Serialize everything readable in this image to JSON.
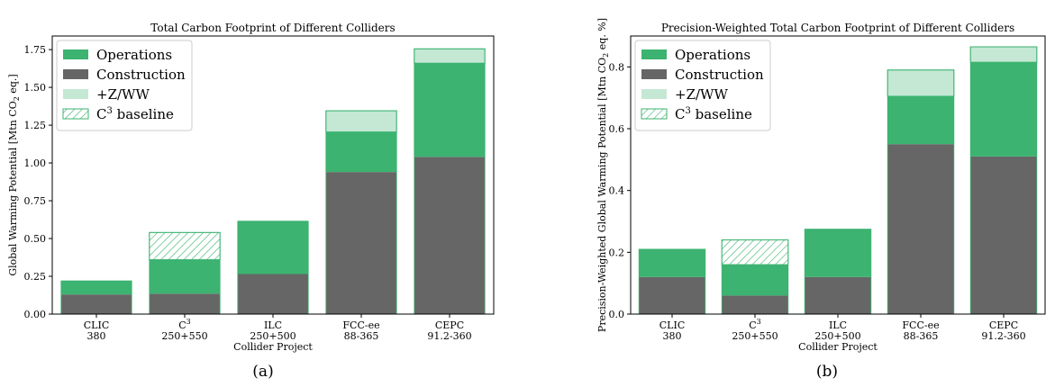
{
  "colors": {
    "operations": "#3cb371",
    "construction": "#666666",
    "zww": "#c4e8d4",
    "baseline_hatch": "#3cb371"
  },
  "legend": {
    "operations": "Operations",
    "construction": "Construction",
    "zww": "+Z/WW",
    "baseline_prefix": "C",
    "baseline_sup": "3",
    "baseline_suffix": " baseline"
  },
  "categories": [
    {
      "line1": "CLIC",
      "line2": "380",
      "sup": ""
    },
    {
      "line1": "C",
      "line2": "250+550",
      "sup": "3"
    },
    {
      "line1": "ILC",
      "line2": "250+500",
      "sup": ""
    },
    {
      "line1": "FCC-ee",
      "line2": "88-365",
      "sup": ""
    },
    {
      "line1": "CEPC",
      "line2": "91.2-360",
      "sup": ""
    }
  ],
  "chart_data": [
    {
      "type": "bar",
      "stacked": true,
      "title": "Total Carbon Footprint of Different Colliders",
      "xlabel": "Collider Project",
      "ylabel_main": "Global Warming Potential [Mtn CO",
      "ylabel_sub": "2",
      "ylabel_tail": " eq.]",
      "ylim": [
        0,
        1.84
      ],
      "yticks": [
        "0.00",
        "0.25",
        "0.50",
        "0.75",
        "1.00",
        "1.25",
        "1.50",
        "1.75"
      ],
      "ytick_values": [
        0,
        0.25,
        0.5,
        0.75,
        1.0,
        1.25,
        1.5,
        1.75
      ],
      "legend_position": "upper-left",
      "series": [
        {
          "name": "Construction",
          "values": [
            0.13,
            0.135,
            0.265,
            0.94,
            1.04
          ]
        },
        {
          "name": "Operations",
          "values": [
            0.09,
            0.225,
            0.35,
            0.265,
            0.62
          ]
        },
        {
          "name": "+Z/WW",
          "values": [
            0,
            0,
            0,
            0.14,
            0.095
          ]
        },
        {
          "name": "C3 baseline",
          "values": [
            0,
            0.18,
            0,
            0,
            0
          ]
        }
      ],
      "caption": "(a)"
    },
    {
      "type": "bar",
      "stacked": true,
      "title": "Precision-Weighted Total Carbon Footprint of Different Colliders",
      "xlabel": "Collider Project",
      "ylabel_main": "Precision-Weighted Global Warming Potential [Mtn CO",
      "ylabel_sub": "2",
      "ylabel_tail": " eq. %]",
      "ylim": [
        0,
        0.9
      ],
      "yticks": [
        "0.0",
        "0.2",
        "0.4",
        "0.6",
        "0.8"
      ],
      "ytick_values": [
        0,
        0.2,
        0.4,
        0.6,
        0.8
      ],
      "legend_position": "upper-left",
      "series": [
        {
          "name": "Construction",
          "values": [
            0.12,
            0.06,
            0.12,
            0.55,
            0.51
          ]
        },
        {
          "name": "Operations",
          "values": [
            0.09,
            0.1,
            0.155,
            0.155,
            0.305
          ]
        },
        {
          "name": "+Z/WW",
          "values": [
            0,
            0,
            0,
            0.085,
            0.05
          ]
        },
        {
          "name": "C3 baseline",
          "values": [
            0,
            0.08,
            0,
            0,
            0
          ]
        }
      ],
      "caption": "(b)"
    }
  ]
}
